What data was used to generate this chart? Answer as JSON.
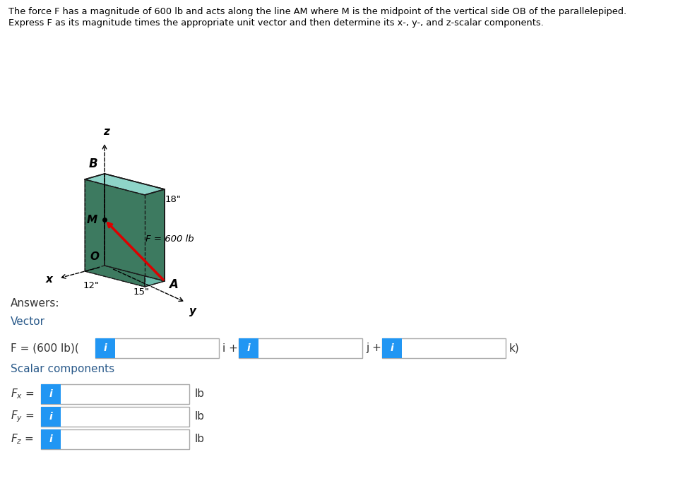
{
  "title_line1": "The force F has a magnitude of 600 lb and acts along the line AM where M is the midpoint of the vertical side OB of the parallelepiped.",
  "title_line2": "Express F as its magnitude times the appropriate unit vector and then determine its x-, y-, and z-scalar components.",
  "bg_color": "#ffffff",
  "text_color": "#000000",
  "blue_color": "#3399ff",
  "label_color": "#5a7a9a",
  "answers_label": "Answers:",
  "vector_label": "Vector",
  "scalar_label": "Scalar components",
  "lb": "lb",
  "dim_12": "12\"",
  "dim_15": "15\"",
  "dim_18": "18\"",
  "label_x": "x",
  "label_y": "y",
  "label_z": "z",
  "label_A": "A",
  "label_B": "B",
  "label_M": "M",
  "label_O": "O",
  "label_F": "F = 600 lb",
  "face_left_color": "#3d7a60",
  "face_front_color": "#6ab8a8",
  "face_top_color": "#8ed4c8",
  "face_right_color": "#5aa090",
  "edge_color": "#1a1a1a",
  "force_color": "#dd0000",
  "btn_color": "#2196F3"
}
